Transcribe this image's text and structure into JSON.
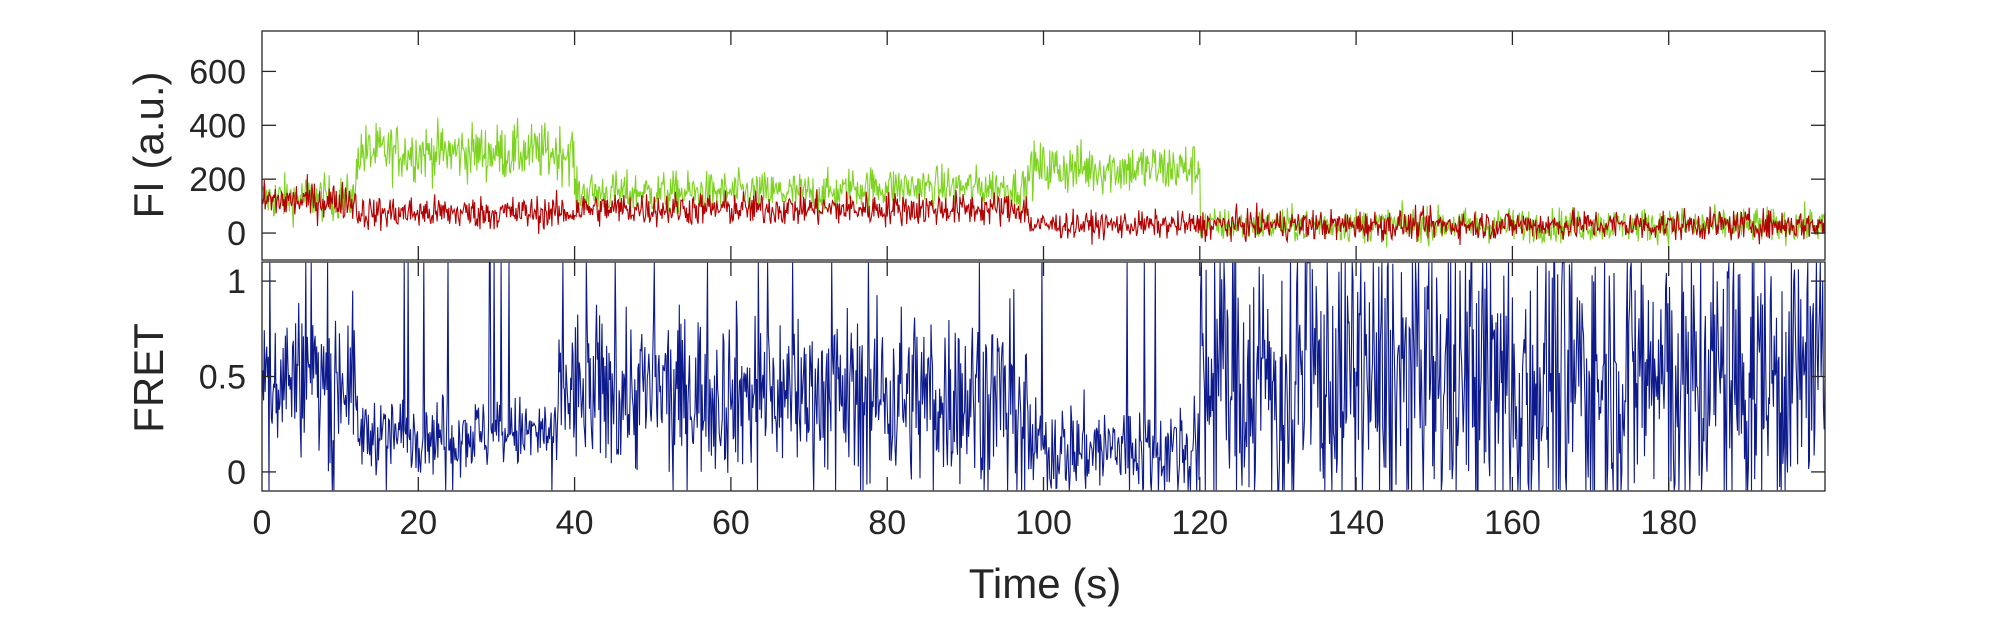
{
  "chart_data": [
    {
      "type": "line",
      "panel": "top",
      "ylabel": "FI (a.u.)",
      "xlim": [
        0,
        200
      ],
      "ylim": [
        -100,
        750
      ],
      "yticks": [
        0,
        200,
        400,
        600
      ],
      "series": [
        {
          "color": "#7ed321",
          "segments": [
            {
              "t": [
                0,
                12
              ],
              "mean": 130,
              "noise": 60
            },
            {
              "t": [
                12,
                40
              ],
              "mean": 300,
              "noise": 75
            },
            {
              "t": [
                40,
                75
              ],
              "mean": 150,
              "noise": 55
            },
            {
              "t": [
                75,
                98
              ],
              "mean": 170,
              "noise": 55
            },
            {
              "t": [
                98,
                120
              ],
              "mean": 240,
              "noise": 70
            },
            {
              "t": [
                120,
                200
              ],
              "mean": 30,
              "noise": 45
            }
          ]
        },
        {
          "color": "#b30000",
          "segments": [
            {
              "t": [
                0,
                12
              ],
              "mean": 120,
              "noise": 50
            },
            {
              "t": [
                12,
                40
              ],
              "mean": 75,
              "noise": 45
            },
            {
              "t": [
                40,
                98
              ],
              "mean": 90,
              "noise": 45
            },
            {
              "t": [
                98,
                120
              ],
              "mean": 30,
              "noise": 35
            },
            {
              "t": [
                120,
                200
              ],
              "mean": 30,
              "noise": 40
            }
          ]
        }
      ]
    },
    {
      "type": "line",
      "panel": "bottom",
      "xlabel": "Time (s)",
      "ylabel": "FRET",
      "xlim": [
        0,
        200
      ],
      "ylim": [
        -0.1,
        1.1
      ],
      "yticks": [
        0,
        0.5,
        1
      ],
      "xticks": [
        0,
        20,
        40,
        60,
        80,
        100,
        120,
        140,
        160,
        180
      ],
      "series": [
        {
          "color": "#0d1a8c",
          "segments": [
            {
              "t": [
                0,
                12
              ],
              "mean": 0.5,
              "noise": 0.28
            },
            {
              "t": [
                12,
                38
              ],
              "mean": 0.2,
              "noise": 0.14
            },
            {
              "t": [
                38,
                75
              ],
              "mean": 0.42,
              "noise": 0.3
            },
            {
              "t": [
                75,
                98
              ],
              "mean": 0.4,
              "noise": 0.33
            },
            {
              "t": [
                98,
                120
              ],
              "mean": 0.12,
              "noise": 0.18
            },
            {
              "t": [
                120,
                200
              ],
              "mean": 0.5,
              "noise": 0.55
            }
          ]
        }
      ]
    }
  ],
  "tick_labels": {
    "top_y": [
      "0",
      "200",
      "400",
      "600"
    ],
    "bottom_y": [
      "0",
      "0.5",
      "1"
    ],
    "x": [
      "0",
      "20",
      "40",
      "60",
      "80",
      "100",
      "120",
      "140",
      "160",
      "180"
    ]
  }
}
